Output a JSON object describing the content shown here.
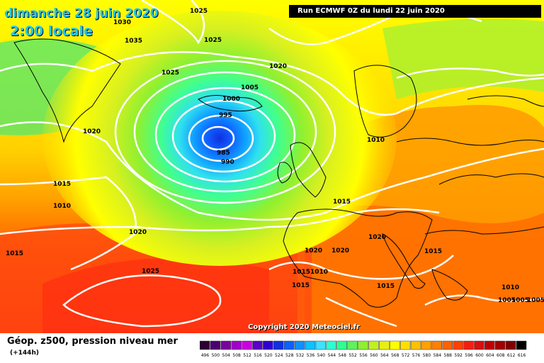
{
  "header": {
    "date_label": "dimanche 28 juin 2020",
    "time_label": "2:00 locale",
    "run_label": "Run ECMWF 0Z du lundi 22 juin 2020"
  },
  "copyright": "Copyright 2020 Meteociel.fr",
  "footer": {
    "title": "Géop. z500, pression niveau mer",
    "subtitle": "(+144h)"
  },
  "isobar_labels": [
    "1025",
    "1030",
    "1035",
    "1025",
    "1025",
    "1020",
    "1005",
    "1000",
    "995",
    "985",
    "990",
    "1020",
    "1010",
    "1015",
    "1010",
    "1020",
    "1015",
    "1025",
    "1015",
    "1020",
    "1020",
    "1015",
    "1015",
    "1015",
    "1010",
    "1020",
    "1015",
    "1010",
    "1005",
    "1005",
    "1005"
  ],
  "legend": {
    "values": [
      "496",
      "500",
      "504",
      "508",
      "512",
      "516",
      "520",
      "524",
      "528",
      "532",
      "536",
      "540",
      "544",
      "548",
      "552",
      "556",
      "560",
      "564",
      "568",
      "572",
      "576",
      "580",
      "584",
      "588",
      "592",
      "596",
      "600",
      "604",
      "608",
      "612",
      "616"
    ],
    "colors": [
      "#2a0030",
      "#4b0070",
      "#7a00a0",
      "#a000c8",
      "#c800e0",
      "#5a00c8",
      "#3000d0",
      "#1030e0",
      "#1060ff",
      "#1090ff",
      "#10c0ff",
      "#40e0ff",
      "#30ffd0",
      "#30ff90",
      "#60f060",
      "#90f030",
      "#c0f020",
      "#e8f010",
      "#ffff00",
      "#ffe000",
      "#ffc000",
      "#ffa000",
      "#ff8000",
      "#ff6000",
      "#ff4000",
      "#f02010",
      "#d81010",
      "#c00000",
      "#a00000",
      "#800000",
      "#000000"
    ]
  },
  "colors": {
    "title": "#22c8f0",
    "isobar": "#ffffff",
    "coast": "#000000"
  }
}
